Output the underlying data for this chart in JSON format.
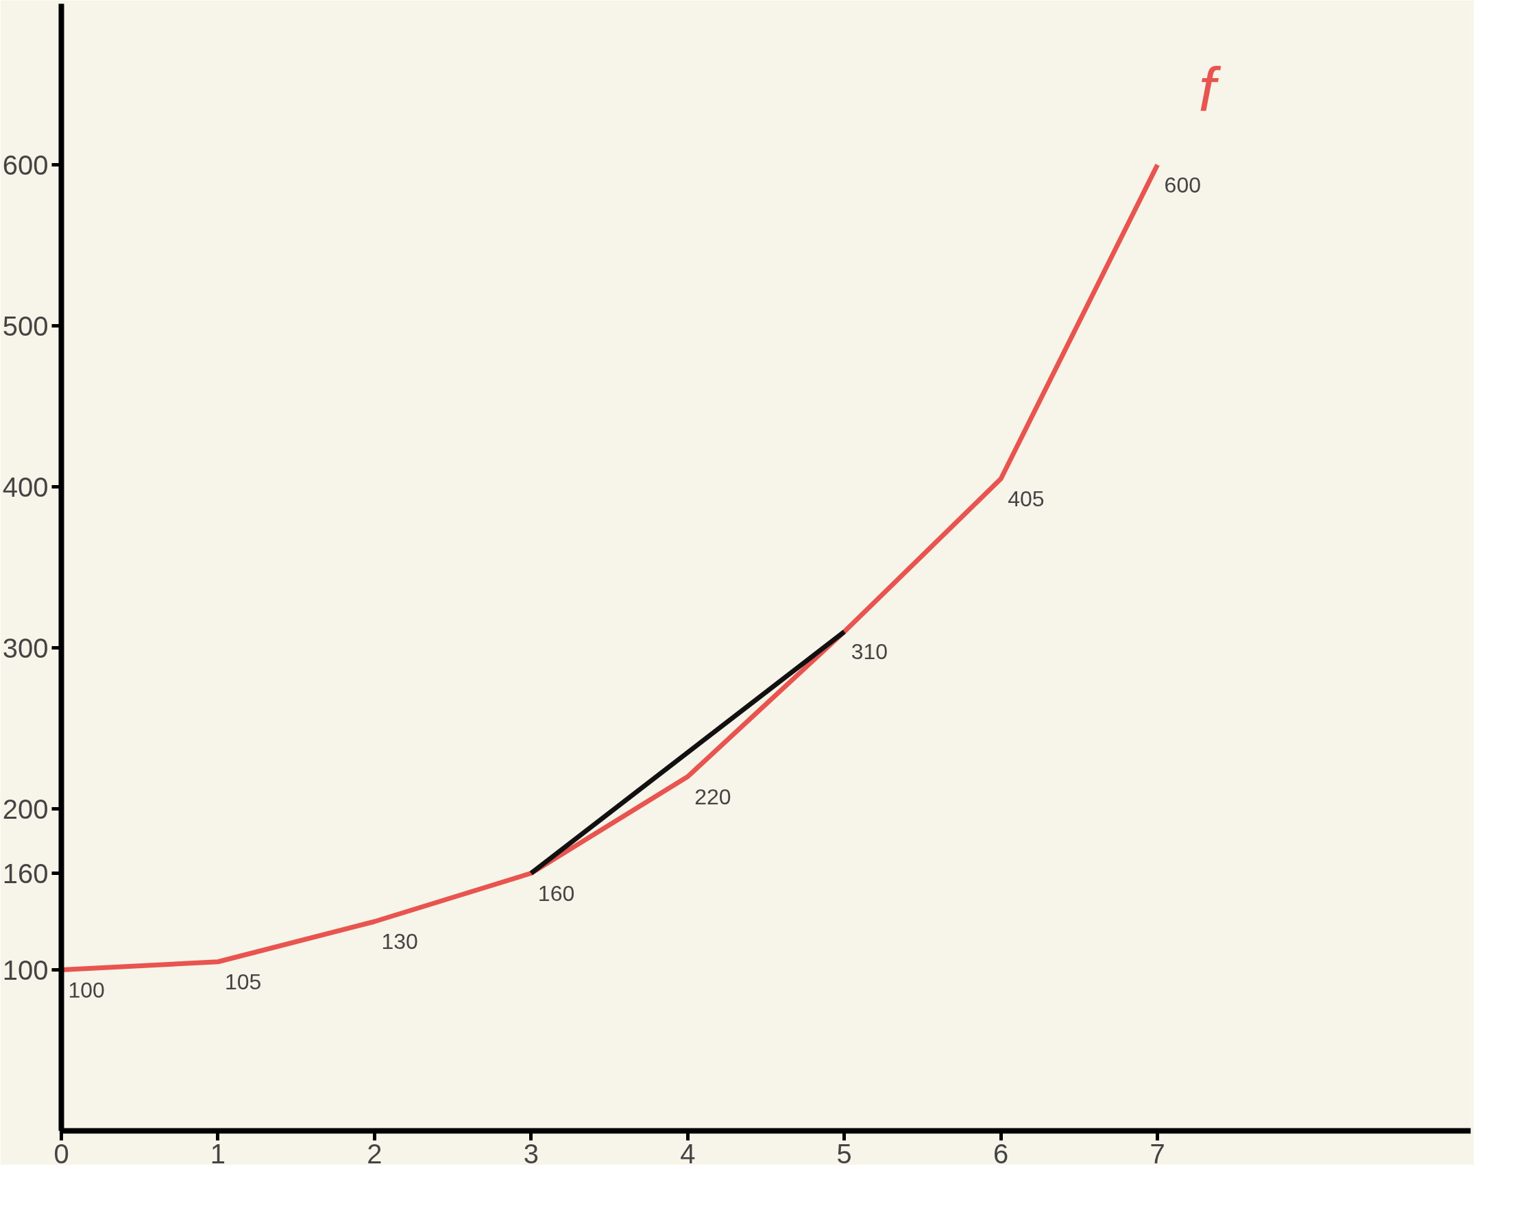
{
  "chart_data": {
    "type": "line",
    "x": [
      0,
      1,
      2,
      3,
      4,
      5,
      6,
      7
    ],
    "xlim": [
      0,
      9
    ],
    "ylim": [
      0,
      700
    ],
    "xticks": [
      0,
      1,
      2,
      3,
      4,
      5,
      6,
      7
    ],
    "yticks": [
      100,
      160,
      200,
      300,
      400,
      500,
      600
    ],
    "grid": false,
    "marker": "none",
    "line_style": "solid",
    "series": [
      {
        "name": "f",
        "color": "#e8544f",
        "values": [
          100,
          105,
          130,
          160,
          220,
          310,
          405,
          600
        ],
        "value_labels": [
          "100",
          "105",
          "130",
          "160",
          "220",
          "310",
          "405",
          "600"
        ]
      },
      {
        "color": "#111111",
        "x": [
          3,
          5
        ],
        "values": [
          160,
          310
        ]
      }
    ]
  }
}
